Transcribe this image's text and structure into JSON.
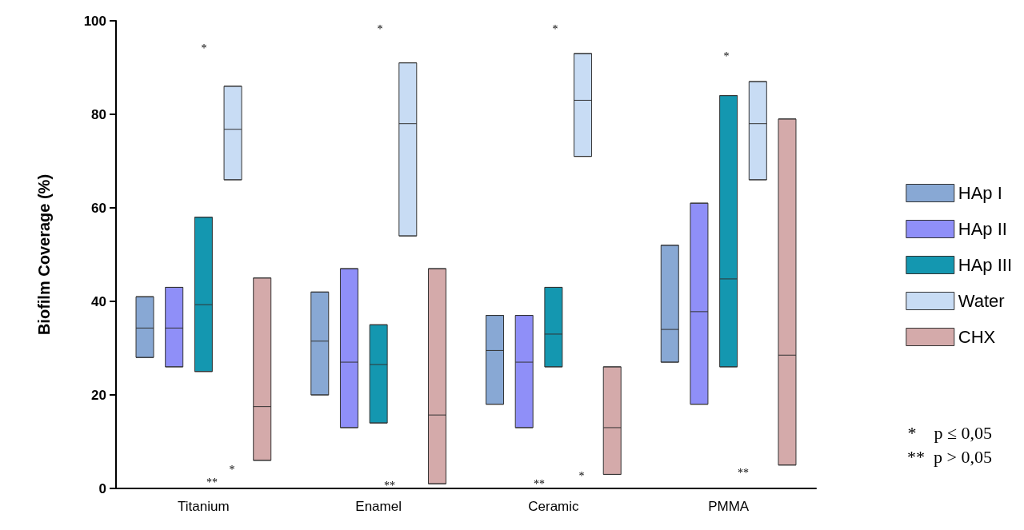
{
  "chart_data": {
    "type": "box",
    "ylabel": "Biofilm Coverage (%)",
    "categories": [
      "Titanium",
      "Enamel",
      "Ceramic",
      "PMMA"
    ],
    "ylim": [
      0,
      100
    ],
    "yticks": [
      0,
      20,
      40,
      60,
      80,
      100
    ],
    "grid": false,
    "legend": "right",
    "series": [
      {
        "name": "HAp I",
        "color": "#88a8d4",
        "boxes": [
          {
            "low": 28,
            "q1": 28,
            "median": 34.3,
            "q3": 41,
            "high": 41
          },
          {
            "low": 20,
            "q1": 20,
            "median": 31.5,
            "q3": 42,
            "high": 42
          },
          {
            "low": 18,
            "q1": 18,
            "median": 29.5,
            "q3": 37,
            "high": 37
          },
          {
            "low": 27,
            "q1": 27,
            "median": 34,
            "q3": 52,
            "high": 52
          }
        ]
      },
      {
        "name": "HAp II",
        "color": "#8f8ff8",
        "boxes": [
          {
            "low": 26,
            "q1": 26,
            "median": 34.3,
            "q3": 43,
            "high": 43
          },
          {
            "low": 13,
            "q1": 13,
            "median": 27,
            "q3": 47,
            "high": 47
          },
          {
            "low": 13,
            "q1": 13,
            "median": 27,
            "q3": 37,
            "high": 37
          },
          {
            "low": 18,
            "q1": 18,
            "median": 37.8,
            "q3": 61,
            "high": 61
          }
        ]
      },
      {
        "name": "HAp III",
        "color": "#1497b0",
        "boxes": [
          {
            "low": 25,
            "q1": 25,
            "median": 39.3,
            "q3": 58,
            "high": 58
          },
          {
            "low": 14,
            "q1": 14,
            "median": 26.5,
            "q3": 35,
            "high": 35
          },
          {
            "low": 26,
            "q1": 26,
            "median": 33,
            "q3": 43,
            "high": 43
          },
          {
            "low": 26,
            "q1": 26,
            "median": 44.8,
            "q3": 84,
            "high": 84
          }
        ]
      },
      {
        "name": "Water",
        "color": "#c8dcf4",
        "boxes": [
          {
            "low": 66,
            "q1": 66,
            "median": 76.8,
            "q3": 86,
            "high": 86
          },
          {
            "low": 54,
            "q1": 54,
            "median": 78,
            "q3": 91,
            "high": 91
          },
          {
            "low": 71,
            "q1": 71,
            "median": 83,
            "q3": 93,
            "high": 93
          },
          {
            "low": 66,
            "q1": 66,
            "median": 78,
            "q3": 87,
            "high": 87
          }
        ]
      },
      {
        "name": "CHX",
        "color": "#d4aaaa",
        "boxes": [
          {
            "low": 6,
            "q1": 6,
            "median": 17.5,
            "q3": 45,
            "high": 45
          },
          {
            "low": 1,
            "q1": 1,
            "median": 15.7,
            "q3": 47,
            "high": 47
          },
          {
            "low": 3,
            "q1": 3,
            "median": 13,
            "q3": 26,
            "high": 26
          },
          {
            "low": 5,
            "q1": 5,
            "median": 28.5,
            "q3": 79,
            "high": 79
          }
        ]
      }
    ],
    "annotations": [
      "*",
      "*",
      "**",
      "*",
      "**",
      "*",
      "*",
      "**",
      "*",
      "**",
      "*    p ≤ 0,05",
      "**  p > 0,05"
    ]
  }
}
